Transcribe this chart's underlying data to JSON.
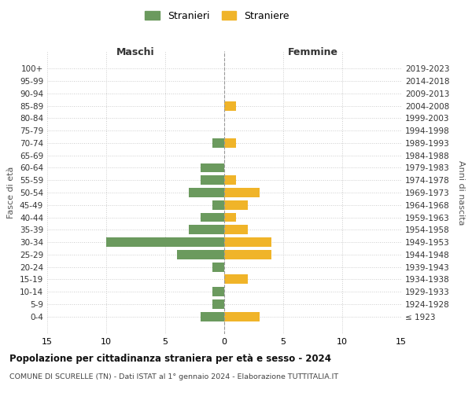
{
  "age_groups": [
    "100+",
    "95-99",
    "90-94",
    "85-89",
    "80-84",
    "75-79",
    "70-74",
    "65-69",
    "60-64",
    "55-59",
    "50-54",
    "45-49",
    "40-44",
    "35-39",
    "30-34",
    "25-29",
    "20-24",
    "15-19",
    "10-14",
    "5-9",
    "0-4"
  ],
  "birth_years": [
    "≤ 1923",
    "1924-1928",
    "1929-1933",
    "1934-1938",
    "1939-1943",
    "1944-1948",
    "1949-1953",
    "1954-1958",
    "1959-1963",
    "1964-1968",
    "1969-1973",
    "1974-1978",
    "1979-1983",
    "1984-1988",
    "1989-1993",
    "1994-1998",
    "1999-2003",
    "2004-2008",
    "2009-2013",
    "2014-2018",
    "2019-2023"
  ],
  "maschi": [
    0,
    0,
    0,
    0,
    0,
    0,
    1,
    0,
    2,
    2,
    3,
    1,
    2,
    3,
    10,
    4,
    1,
    0,
    1,
    1,
    2
  ],
  "femmine": [
    0,
    0,
    0,
    1,
    0,
    0,
    1,
    0,
    0,
    1,
    3,
    2,
    1,
    2,
    4,
    4,
    0,
    2,
    0,
    0,
    3
  ],
  "color_maschi": "#6b9a5e",
  "color_femmine": "#f0b429",
  "title": "Popolazione per cittadinanza straniera per età e sesso - 2024",
  "subtitle": "COMUNE DI SCURELLE (TN) - Dati ISTAT al 1° gennaio 2024 - Elaborazione TUTTITALIA.IT",
  "xlabel_left": "Maschi",
  "xlabel_right": "Femmine",
  "ylabel_left": "Fasce di età",
  "ylabel_right": "Anni di nascita",
  "legend_maschi": "Stranieri",
  "legend_femmine": "Straniere",
  "xlim": 15,
  "background_color": "#ffffff"
}
